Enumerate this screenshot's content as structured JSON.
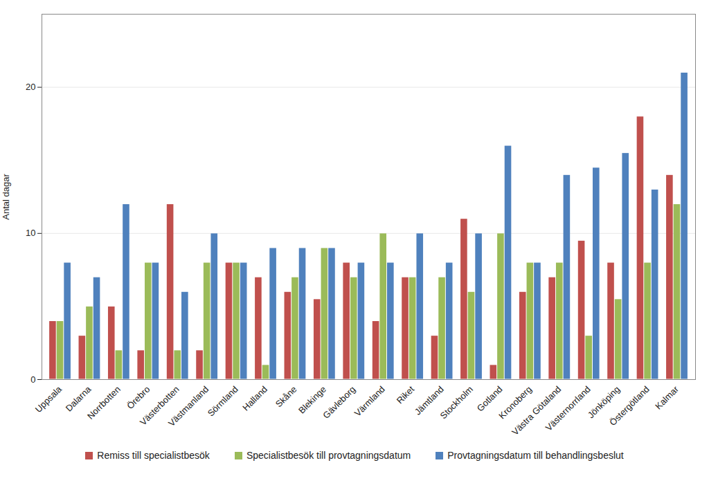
{
  "chart_data": {
    "type": "bar",
    "y_label": "Antal dagar",
    "categories": [
      "Uppsala",
      "Dalarna",
      "Norrbotten",
      "Örebro",
      "Västerbotten",
      "Västmanland",
      "Sörmland",
      "Halland",
      "Skåne",
      "Blekinge",
      "Gävleborg",
      "Värmland",
      "Riket",
      "Jämtland",
      "Stockholm",
      "Gotland",
      "Kronoberg",
      "Västra Götaland",
      "Västernorrland",
      "Jönköping",
      "Östergötland",
      "Kalmar"
    ],
    "series": [
      {
        "name": "Remiss till specialistbesök",
        "color": "#c0504d",
        "values": [
          4,
          3,
          5,
          2,
          12,
          2,
          8,
          7,
          6,
          5.5,
          8,
          4,
          7,
          3,
          11,
          1,
          6,
          7,
          9.5,
          8,
          18,
          14
        ]
      },
      {
        "name": "Specialistbesök till provtagningsdatum",
        "color": "#9bbb59",
        "values": [
          4,
          5,
          2,
          8,
          2,
          8,
          8,
          1,
          7,
          9,
          7,
          10,
          7,
          7,
          6,
          10,
          8,
          8,
          3,
          5.5,
          8,
          12
        ]
      },
      {
        "name": "Provtagningsdatum till behandlingsbeslut",
        "color": "#4f81bd",
        "values": [
          8,
          7,
          12,
          8,
          6,
          10,
          8,
          9,
          9,
          9,
          8,
          8,
          10,
          8,
          10,
          16,
          8,
          14,
          14.5,
          15.5,
          13,
          21
        ]
      }
    ],
    "ylim": [
      0,
      25
    ],
    "yticks": [
      0,
      10,
      20
    ],
    "grid": true,
    "legend": "bottom"
  }
}
